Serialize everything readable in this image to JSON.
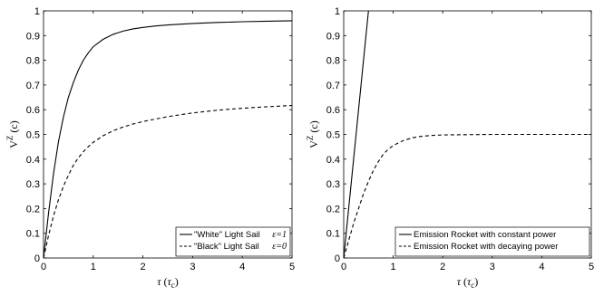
{
  "chart_data": [
    {
      "type": "line",
      "xlabel": "τ (τ_c)",
      "ylabel": "V^Z (c)",
      "xlim": [
        0,
        5
      ],
      "ylim": [
        0,
        1
      ],
      "xticks": [
        "0",
        "1",
        "2",
        "3",
        "4",
        "5"
      ],
      "yticks": [
        "0",
        "0.1",
        "0.2",
        "0.3",
        "0.4",
        "0.5",
        "0.6",
        "0.7",
        "0.8",
        "0.9",
        "1"
      ],
      "grid": false,
      "legend_position": "bottom-right",
      "series": [
        {
          "name": "\"White\" Light Sail",
          "legend_suffix": "ε=1",
          "style": "solid",
          "color": "#000000",
          "x": [
            0,
            0.1,
            0.2,
            0.3,
            0.4,
            0.5,
            0.6,
            0.7,
            0.8,
            0.9,
            1.0,
            1.2,
            1.4,
            1.6,
            1.8,
            2.0,
            2.25,
            2.5,
            3.0,
            3.5,
            4.0,
            4.5,
            5.0
          ],
          "y": [
            0.0,
            0.18,
            0.34,
            0.47,
            0.57,
            0.65,
            0.71,
            0.76,
            0.8,
            0.83,
            0.855,
            0.885,
            0.905,
            0.918,
            0.927,
            0.933,
            0.939,
            0.943,
            0.949,
            0.953,
            0.956,
            0.958,
            0.96
          ]
        },
        {
          "name": "\"Black\" Light Sail",
          "legend_suffix": "ε=0",
          "style": "dashed",
          "color": "#000000",
          "x": [
            0,
            0.1,
            0.2,
            0.3,
            0.4,
            0.5,
            0.6,
            0.7,
            0.8,
            0.9,
            1.0,
            1.2,
            1.4,
            1.6,
            1.8,
            2.0,
            2.5,
            3.0,
            3.5,
            4.0,
            4.5,
            5.0
          ],
          "y": [
            0.0,
            0.09,
            0.17,
            0.235,
            0.29,
            0.335,
            0.375,
            0.405,
            0.43,
            0.45,
            0.468,
            0.495,
            0.515,
            0.53,
            0.542,
            0.552,
            0.572,
            0.587,
            0.598,
            0.606,
            0.612,
            0.617
          ]
        }
      ]
    },
    {
      "type": "line",
      "xlabel": "τ (τ_c)",
      "ylabel": "V^Z (c)",
      "xlim": [
        0,
        5
      ],
      "ylim": [
        0,
        1
      ],
      "xticks": [
        "0",
        "1",
        "2",
        "3",
        "4",
        "5"
      ],
      "yticks": [
        "0",
        "0.1",
        "0.2",
        "0.3",
        "0.4",
        "0.5",
        "0.6",
        "0.7",
        "0.8",
        "0.9",
        "1"
      ],
      "grid": false,
      "legend_position": "bottom-right",
      "series": [
        {
          "name": "Emission Rocket with constant power",
          "style": "solid",
          "color": "#000000",
          "x": [
            0,
            0.05,
            0.1,
            0.15,
            0.2,
            0.25,
            0.3,
            0.35,
            0.4,
            0.45,
            0.5
          ],
          "y": [
            0.0,
            0.1,
            0.2,
            0.3,
            0.4,
            0.5,
            0.6,
            0.7,
            0.8,
            0.9,
            1.0
          ]
        },
        {
          "name": "Emission Rocket with decaying power",
          "style": "dashed",
          "color": "#000000",
          "x": [
            0,
            0.1,
            0.2,
            0.3,
            0.4,
            0.5,
            0.6,
            0.7,
            0.8,
            0.9,
            1.0,
            1.2,
            1.4,
            1.6,
            1.8,
            2.0,
            2.5,
            3.0,
            4.0,
            5.0
          ],
          "y": [
            0.0,
            0.07,
            0.14,
            0.2,
            0.26,
            0.31,
            0.355,
            0.39,
            0.42,
            0.44,
            0.455,
            0.475,
            0.487,
            0.493,
            0.496,
            0.498,
            0.499,
            0.5,
            0.5,
            0.5
          ]
        }
      ]
    }
  ]
}
